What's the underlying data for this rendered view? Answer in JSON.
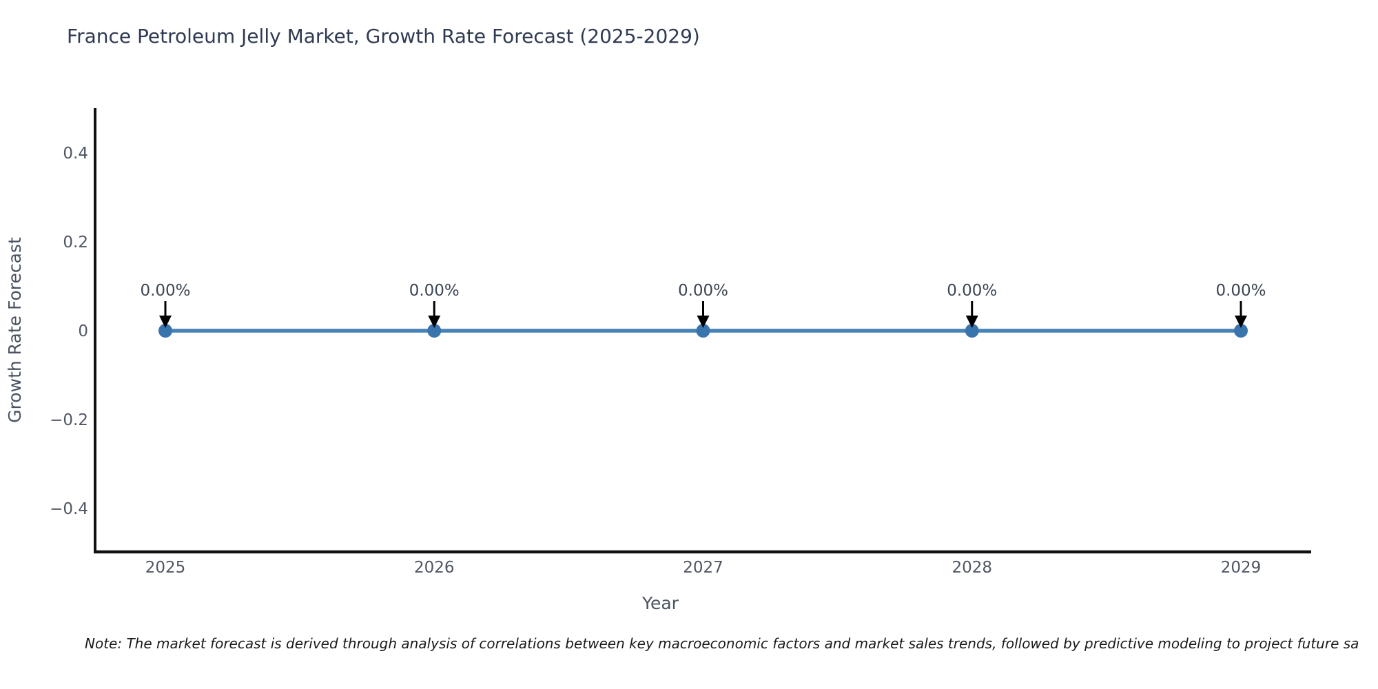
{
  "title": "France Petroleum Jelly Market, Growth Rate Forecast (2025-2029)",
  "note": "Note: The market forecast is derived through analysis of correlations between key macroeconomic factors and market sales trends, followed by predictive modeling to project future sa",
  "chart_data": {
    "type": "line",
    "x": [
      2025,
      2026,
      2027,
      2028,
      2029
    ],
    "series": [
      {
        "name": "Growth Rate Forecast",
        "values": [
          0,
          0,
          0,
          0,
          0
        ]
      }
    ],
    "point_labels": [
      "0.00%",
      "0.00%",
      "0.00%",
      "0.00%",
      "0.00%"
    ],
    "title": "France Petroleum Jelly Market, Growth Rate Forecast (2025-2029)",
    "xlabel": "Year",
    "ylabel": "Growth Rate Forecast",
    "yticks": [
      0.4,
      0.2,
      0,
      -0.2,
      -0.4
    ],
    "ylim": [
      -0.5,
      0.5
    ],
    "grid": false,
    "legend": false,
    "annotations": "black arrow pointing down to each data point from its percentage label",
    "colors": {
      "line": "#4682b4",
      "marker": "#3a74ad",
      "arrow": "#000000",
      "axis": "#111111",
      "title": "#2f3b52",
      "tick_label": "#4f5663",
      "axis_label": "#4a5260",
      "point_label": "#3d4654"
    }
  }
}
